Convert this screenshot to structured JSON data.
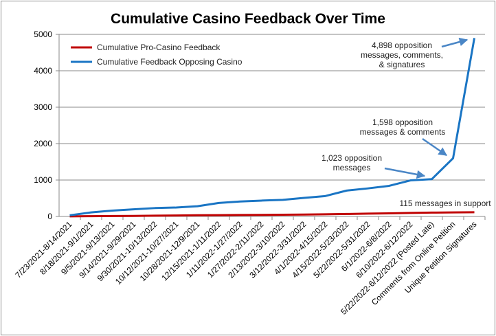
{
  "chart_data": {
    "type": "line",
    "title": "Cumulative Casino Feedback Over Time",
    "xlabel": "",
    "ylabel": "",
    "ylim": [
      0,
      5000
    ],
    "yticks": [
      "0",
      "1000",
      "2000",
      "3000",
      "4000",
      "5000"
    ],
    "grid": true,
    "legend_position": "top-left",
    "categories": [
      "7/23/2021-8/14/2021",
      "8/18/2021-9/1/2021",
      "9/5/2021-9/13/2021",
      "9/14/2021-9/29/2021",
      "9/30/2021-10/13/2022",
      "10/12/2021-10/27/2021",
      "10/28/2021-12/9/2021",
      "12/15/2021-1/11/2022",
      "1/11/2022-1/27/2022",
      "1/27/2022-2/11/2022",
      "2/13/2022-3/10/2022",
      "3/12/2022-3/31/2022",
      "4/1/2022-4/15/2022",
      "4/15/2022-5/23/2022",
      "5/22/2022-5/31/2022",
      "6/1/2022-6/8/2022",
      "6/10/2022-6/12/2022",
      "5/22/2022-6/12/2022 (Posted Late)",
      "Comments from Online Petition",
      "Unique Petition Signatures"
    ],
    "series": [
      {
        "name": "Cumulative Pro-Casino Feedback",
        "color": "#c00000",
        "values": [
          2,
          8,
          12,
          15,
          22,
          26,
          32,
          36,
          40,
          42,
          46,
          52,
          58,
          68,
          78,
          86,
          96,
          105,
          110,
          115
        ]
      },
      {
        "name": "Cumulative Feedback Opposing Casino",
        "color": "#1a75c4",
        "values": [
          30,
          110,
          160,
          195,
          230,
          245,
          280,
          370,
          410,
          435,
          455,
          510,
          560,
          710,
          770,
          840,
          990,
          1023,
          1598,
          4898
        ]
      }
    ],
    "annotations": [
      {
        "lines": [
          "4,898 opposition",
          "messages, comments,",
          "& signatures"
        ],
        "target_index": 19,
        "series": 1
      },
      {
        "lines": [
          "1,598 opposition",
          "messages & comments"
        ],
        "target_index": 18,
        "series": 1
      },
      {
        "lines": [
          "1,023 opposition",
          "messages"
        ],
        "target_index": 17,
        "series": 1
      },
      {
        "lines": [
          "115 messages in support"
        ],
        "target_index": 19,
        "series": 0
      }
    ]
  }
}
